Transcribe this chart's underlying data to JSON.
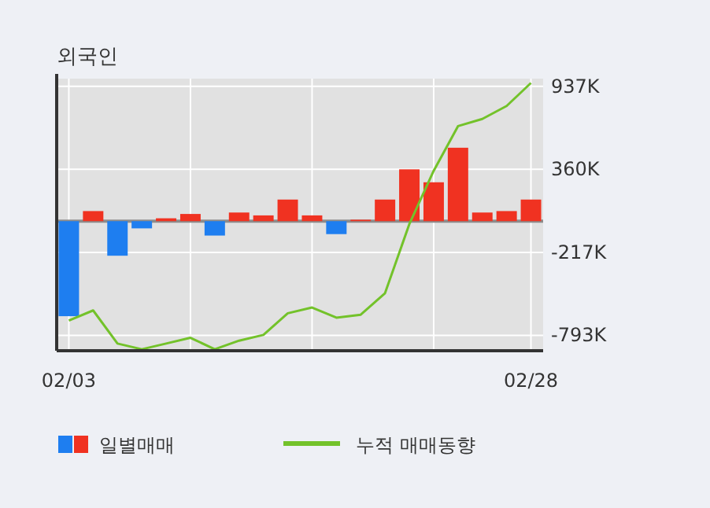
{
  "chart_data": {
    "type": "bar",
    "title": "외국인",
    "categories": [
      "02/03",
      null,
      null,
      null,
      null,
      null,
      null,
      null,
      null,
      null,
      null,
      null,
      null,
      null,
      null,
      null,
      null,
      null,
      null,
      "02/28"
    ],
    "series": [
      {
        "name": "일별매매",
        "colors": [
          "#1e7ef0",
          "#f03221",
          "#1e7ef0",
          "#1e7ef0",
          "#f03221",
          "#f03221",
          "#1e7ef0",
          "#f03221",
          "#f03221",
          "#f03221",
          "#f03221",
          "#1e7ef0",
          "#f03221",
          "#f03221",
          "#f03221",
          "#f03221",
          "#f03221",
          "#f03221",
          "#f03221",
          "#f03221"
        ],
        "values": [
          -660,
          70,
          -240,
          -50,
          20,
          50,
          -100,
          60,
          40,
          150,
          40,
          -90,
          10,
          150,
          360,
          270,
          510,
          60,
          70,
          150
        ]
      },
      {
        "name": "누적 매매동향",
        "type": "line",
        "color": "#73c22a",
        "values": [
          -690,
          -620,
          -850,
          -890,
          -850,
          -810,
          -890,
          -830,
          -790,
          -640,
          -600,
          -670,
          -650,
          -500,
          -20,
          350,
          660,
          710,
          800,
          960
        ]
      }
    ],
    "ylim": [
      -900,
      990
    ],
    "yticks": [
      {
        "value": 937,
        "label": "937K"
      },
      {
        "value": 360,
        "label": "360K"
      },
      {
        "value": -217,
        "label": "-217K"
      },
      {
        "value": -793,
        "label": "-793K"
      }
    ],
    "ref_lines": [
      {
        "axis": "y",
        "value": 0,
        "color": "#8c8c8c"
      }
    ],
    "grid": true,
    "legend": "bottom"
  }
}
